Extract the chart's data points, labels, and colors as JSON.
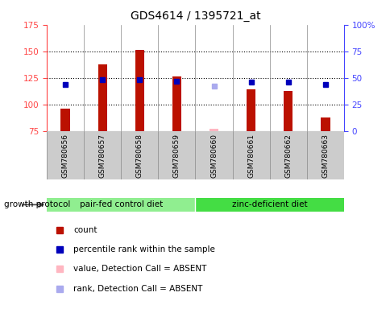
{
  "title": "GDS4614 / 1395721_at",
  "samples": [
    "GSM780656",
    "GSM780657",
    "GSM780658",
    "GSM780659",
    "GSM780660",
    "GSM780661",
    "GSM780662",
    "GSM780663"
  ],
  "count_values": [
    96,
    138,
    151,
    126,
    77,
    114,
    113,
    88
  ],
  "count_absent": [
    false,
    false,
    false,
    false,
    true,
    false,
    false,
    false
  ],
  "rank_values": [
    44,
    48,
    48,
    47,
    42,
    46,
    46,
    44
  ],
  "rank_absent": [
    false,
    false,
    false,
    false,
    true,
    false,
    false,
    false
  ],
  "ylim_left": [
    75,
    175
  ],
  "ylim_right": [
    0,
    100
  ],
  "yticks_left": [
    75,
    100,
    125,
    150,
    175
  ],
  "yticks_right": [
    0,
    25,
    50,
    75,
    100
  ],
  "ytick_right_labels": [
    "0",
    "25",
    "50",
    "75",
    "100%"
  ],
  "groups": [
    {
      "label": "pair-fed control diet",
      "start": 0,
      "end": 4,
      "color": "#90EE90"
    },
    {
      "label": "zinc-deficient diet",
      "start": 4,
      "end": 8,
      "color": "#44DD44"
    }
  ],
  "group_label": "growth protocol",
  "bar_color_present": "#BB1100",
  "bar_color_absent": "#FFB6C1",
  "rank_color_present": "#0000BB",
  "rank_color_absent": "#AAAAEE",
  "bar_bottom": 75,
  "bar_width": 0.25,
  "background_color": "#FFFFFF",
  "plot_bg_color": "#FFFFFF",
  "sample_bg_color": "#CCCCCC",
  "grid_dotted_color": "#000000",
  "legend_items": [
    {
      "label": "count",
      "color": "#BB1100"
    },
    {
      "label": "percentile rank within the sample",
      "color": "#0000BB"
    },
    {
      "label": "value, Detection Call = ABSENT",
      "color": "#FFB6C1"
    },
    {
      "label": "rank, Detection Call = ABSENT",
      "color": "#AAAAEE"
    }
  ],
  "left_spine_color": "#FF4444",
  "right_spine_color": "#4444FF",
  "rank_scale_factor": 1.0
}
